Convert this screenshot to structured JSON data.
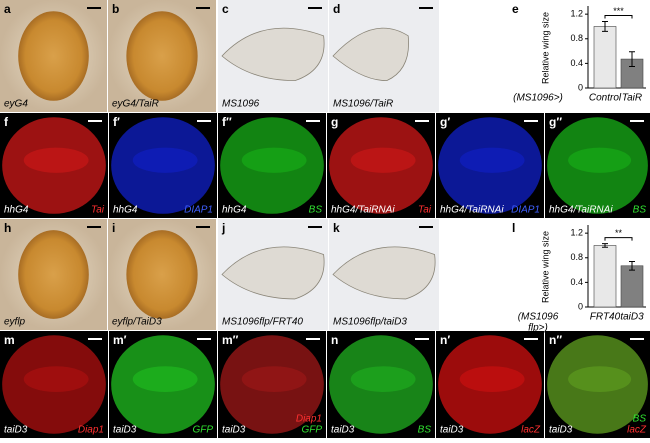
{
  "panels": [
    {
      "letter": "a",
      "captions": [
        {
          "text": "eyG4",
          "color": "#000"
        }
      ]
    },
    {
      "letter": "b",
      "captions": [
        {
          "text": "eyG4/TaiR",
          "color": "#000"
        }
      ]
    },
    {
      "letter": "c",
      "captions": [
        {
          "text": "MS1096",
          "color": "#000"
        }
      ]
    },
    {
      "letter": "d",
      "captions": [
        {
          "text": "MS1096/TaiR",
          "color": "#000"
        }
      ]
    },
    {
      "letter": "f",
      "captions": [
        {
          "text": "hhG4",
          "color": "#fff"
        },
        {
          "text": "Tai",
          "color": "#ff3030"
        }
      ]
    },
    {
      "letter": "f′",
      "captions": [
        {
          "text": "hhG4",
          "color": "#fff"
        },
        {
          "text": "DIAP1",
          "color": "#4060ff"
        }
      ]
    },
    {
      "letter": "f′′",
      "captions": [
        {
          "text": "hhG4",
          "color": "#fff"
        },
        {
          "text": "BS",
          "color": "#30e030"
        }
      ]
    },
    {
      "letter": "g",
      "captions": [
        {
          "text": "hhG4/TaiRNAi",
          "color": "#fff"
        },
        {
          "text": "Tai",
          "color": "#ff3030"
        }
      ]
    },
    {
      "letter": "g′",
      "captions": [
        {
          "text": "hhG4/TaiRNAi",
          "color": "#fff"
        },
        {
          "text": "DIAP1",
          "color": "#4060ff"
        }
      ]
    },
    {
      "letter": "g′′",
      "captions": [
        {
          "text": "hhG4/TaiRNAi",
          "color": "#fff"
        },
        {
          "text": "BS",
          "color": "#30e030"
        }
      ]
    },
    {
      "letter": "h",
      "captions": [
        {
          "text": "eyflp",
          "color": "#000"
        }
      ]
    },
    {
      "letter": "i",
      "captions": [
        {
          "text": "eyflp/TaiD3",
          "color": "#000"
        }
      ]
    },
    {
      "letter": "j",
      "captions": [
        {
          "text": "MS1096flp/FRT40",
          "color": "#000"
        }
      ]
    },
    {
      "letter": "k",
      "captions": [
        {
          "text": "MS1096flp/taiD3",
          "color": "#000"
        }
      ]
    },
    {
      "letter": "m",
      "captions": [
        {
          "text": "taiD3",
          "color": "#fff"
        },
        {
          "text": "Diap1",
          "color": "#ff3030"
        }
      ]
    },
    {
      "letter": "m′",
      "captions": [
        {
          "text": "taiD3",
          "color": "#fff"
        },
        {
          "text": "GFP",
          "color": "#30e030"
        }
      ]
    },
    {
      "letter": "m′′",
      "captions": [
        {
          "text": "taiD3",
          "color": "#fff"
        },
        {
          "text": "Diap1",
          "color": "#ff3030"
        },
        {
          "text": "GFP",
          "color": "#30e030"
        }
      ]
    },
    {
      "letter": "n",
      "captions": [
        {
          "text": "taiD3",
          "color": "#fff"
        },
        {
          "text": "BS",
          "color": "#30e030"
        }
      ]
    },
    {
      "letter": "n′",
      "captions": [
        {
          "text": "taiD3",
          "color": "#fff"
        },
        {
          "text": "lacZ",
          "color": "#ff3030"
        }
      ]
    },
    {
      "letter": "n′′",
      "captions": [
        {
          "text": "taiD3",
          "color": "#fff"
        },
        {
          "text": "BS",
          "color": "#30e030"
        },
        {
          "text": "lacZ",
          "color": "#ff3030"
        }
      ]
    }
  ],
  "chart_data": [
    {
      "type": "bar",
      "letter": "e",
      "y_label": "Relative wing size",
      "condition_label": [
        "(MS1096>)"
      ],
      "categories": [
        "Control",
        "TaiR"
      ],
      "values": [
        1.0,
        0.47
      ],
      "errors": [
        0.08,
        0.12
      ],
      "colors": [
        "#e8e8e8",
        "#808080"
      ],
      "significance": "***",
      "ylim": [
        0,
        1.3
      ],
      "yticks": [
        0,
        0.4,
        0.8,
        1.2
      ]
    },
    {
      "type": "bar",
      "letter": "l",
      "y_label": "Relative wing size",
      "condition_label": [
        "(MS1096",
        "flp>)"
      ],
      "categories": [
        "FRT40",
        "taiD3"
      ],
      "values": [
        1.0,
        0.67
      ],
      "errors": [
        0.03,
        0.07
      ],
      "colors": [
        "#e8e8e8",
        "#808080"
      ],
      "significance": "**",
      "ylim": [
        0,
        1.3
      ],
      "yticks": [
        0,
        0.4,
        0.8,
        1.2
      ]
    }
  ]
}
